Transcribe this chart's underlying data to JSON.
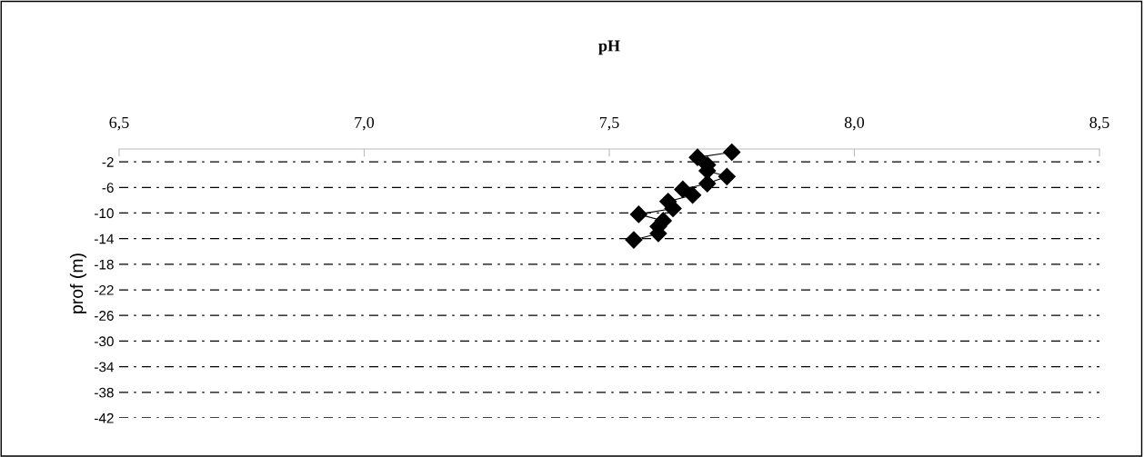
{
  "chart_data": {
    "type": "line",
    "title": "pH",
    "ylabel": "prof (m)",
    "xlim": [
      6.5,
      8.5
    ],
    "xticks": [
      {
        "value": 6.5,
        "label": "6,5"
      },
      {
        "value": 7.0,
        "label": "7,0"
      },
      {
        "value": 7.5,
        "label": "7,5"
      },
      {
        "value": 8.0,
        "label": "8,0"
      },
      {
        "value": 8.5,
        "label": "8,5"
      }
    ],
    "ylim": [
      -42,
      0
    ],
    "yticks": [
      -2,
      -6,
      -10,
      -14,
      -18,
      -22,
      -26,
      -30,
      -34,
      -38,
      -42
    ],
    "grid": "y",
    "legend": false,
    "marker": "diamond",
    "line_style": "solid",
    "series": [
      {
        "color": "#000000",
        "x": [
          7.75,
          7.68,
          7.7,
          7.7,
          7.74,
          7.7,
          7.65,
          7.67,
          7.62,
          7.63,
          7.56,
          7.61,
          7.6,
          7.6,
          7.55
        ],
        "values": [
          -0.5,
          -1.3,
          -2.5,
          -3.4,
          -4.3,
          -5.4,
          -6.3,
          -7.2,
          -8.2,
          -9.3,
          -10.2,
          -11.2,
          -12.1,
          -13.2,
          -14.2
        ]
      }
    ]
  }
}
